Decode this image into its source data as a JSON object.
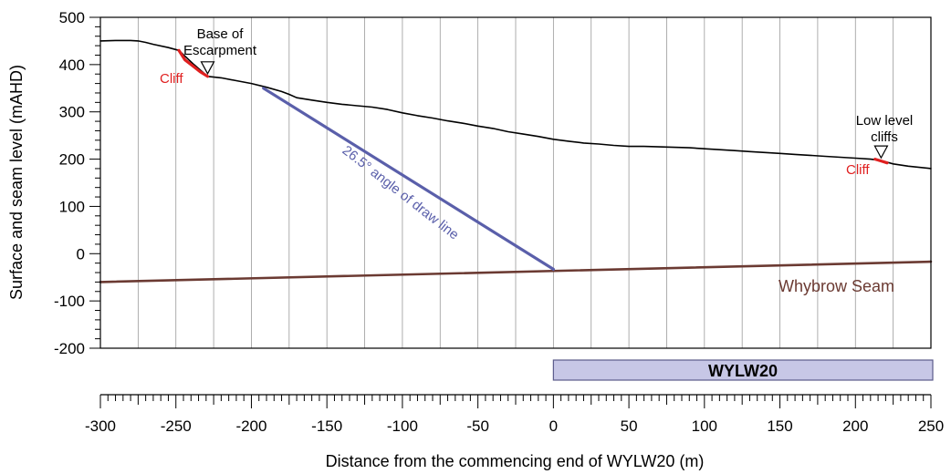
{
  "chart_data": {
    "type": "line",
    "xlabel": "Distance from the commencing end of WYLW20 (m)",
    "ylabel": "Surface and seam level (mAHD)",
    "xlim": [
      -300,
      250
    ],
    "ylim": [
      -200,
      500
    ],
    "x_ticks": [
      "-300",
      "-250",
      "-200",
      "-150",
      "-100",
      "-50",
      "0",
      "50",
      "100",
      "150",
      "200",
      "250"
    ],
    "y_ticks": [
      "500",
      "400",
      "300",
      "200",
      "100",
      "0",
      "-100",
      "-200"
    ],
    "vertical_grid_step": 25,
    "grid": true,
    "series": [
      {
        "key": "surface",
        "color": "#000000",
        "x": [
          -300,
          -290,
          -280,
          -275,
          -270,
          -265,
          -255,
          -248,
          -238,
          -229,
          -220,
          -210,
          -200,
          -190,
          -180,
          -175,
          -170,
          -160,
          -150,
          -140,
          -130,
          -120,
          -110,
          -100,
          -90,
          -80,
          -70,
          -60,
          -50,
          -40,
          -30,
          -20,
          -10,
          0,
          10,
          20,
          30,
          40,
          50,
          60,
          70,
          80,
          90,
          100,
          110,
          120,
          130,
          140,
          150,
          160,
          170,
          180,
          190,
          200,
          210,
          217,
          225,
          235,
          250
        ],
        "y": [
          450,
          451,
          451,
          450,
          447,
          443,
          436,
          430,
          400,
          375,
          372,
          366,
          360,
          352,
          343,
          337,
          330,
          325,
          320,
          316,
          313,
          310,
          305,
          298,
          292,
          287,
          281,
          276,
          270,
          265,
          258,
          253,
          248,
          242,
          238,
          234,
          232,
          229,
          227,
          227,
          226,
          225,
          224,
          222,
          220,
          218,
          216,
          214,
          212,
          210,
          208,
          206,
          204,
          202,
          200,
          197,
          190,
          185,
          180
        ]
      },
      {
        "key": "seam",
        "name": "Whybrow Seam",
        "color": "#6b3a32",
        "x": [
          -300,
          250
        ],
        "y": [
          -60,
          -17
        ]
      },
      {
        "key": "draw",
        "color": "#5a5faa",
        "x": [
          -192,
          0
        ],
        "y": [
          350,
          -33
        ]
      },
      {
        "key": "cliff_left",
        "color": "#e02020",
        "x": [
          -248,
          -244,
          -238,
          -234,
          -229
        ],
        "y": [
          430,
          410,
          395,
          385,
          375
        ]
      },
      {
        "key": "cliff_right",
        "color": "#e02020",
        "x": [
          213,
          217,
          221
        ],
        "y": [
          200,
          196,
          192
        ]
      }
    ],
    "annotations": {
      "base_escarpment_line1": "Base of",
      "base_escarpment_line2": "Escarpment",
      "cliff_left": "Cliff",
      "low_level_line1": "Low level",
      "low_level_line2": "cliffs",
      "cliff_right": "Cliff",
      "draw_line": "26.5° angle of draw line",
      "seam": "Whybrow Seam"
    },
    "markers": [
      {
        "kind": "base_escarpment",
        "x": -229,
        "y": 375
      },
      {
        "kind": "low_level_cliffs",
        "x": 217,
        "y": 197
      }
    ],
    "panel": {
      "label": "WYLW20",
      "x_start": 0,
      "x_end": 250,
      "fill": "#c7c7e6",
      "stroke": "#5a5a8a"
    }
  }
}
